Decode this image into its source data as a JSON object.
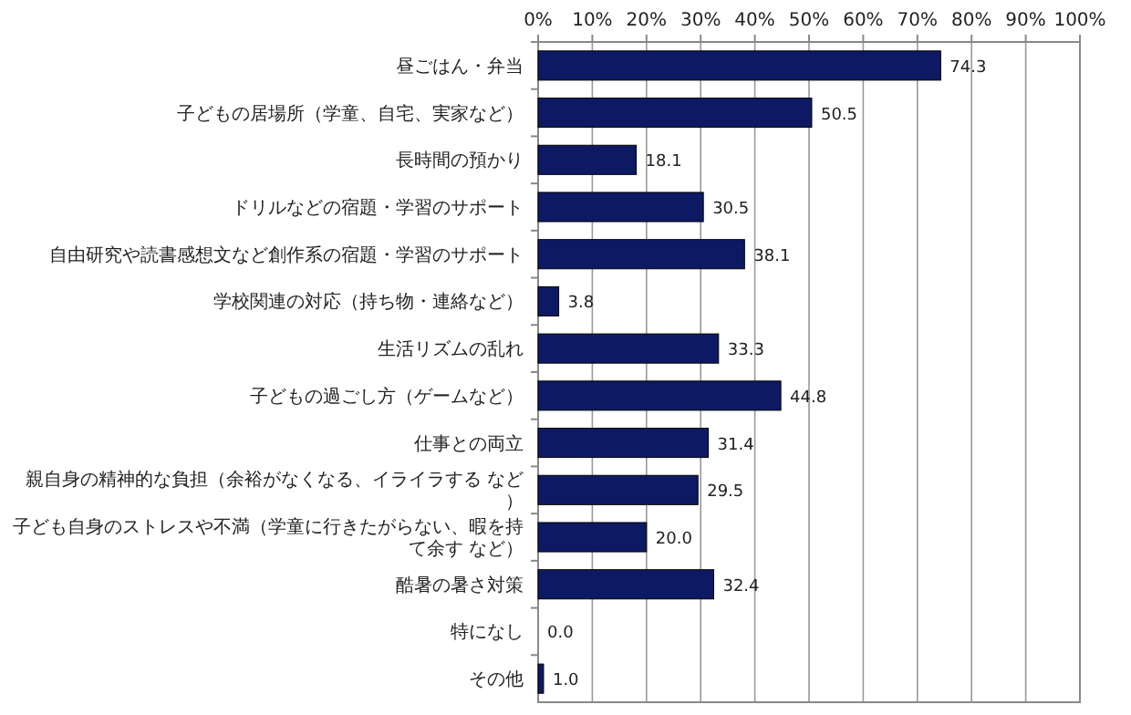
{
  "chart_data": {
    "type": "bar",
    "orientation": "horizontal",
    "categories": [
      "昼ごはん・弁当",
      "子どもの居場所（学童、自宅、実家など）",
      "長時間の預かり",
      "ドリルなどの宿題・学習のサポート",
      "自由研究や読書感想文など創作系の宿題・学習のサポート",
      "学校関連の対応（持ち物・連絡など）",
      "生活リズムの乱れ",
      "子どもの過ごし方（ゲームなど）",
      "仕事との両立",
      "親自身の精神的な負担（余裕がなくなる、イライラする など）",
      "子ども自身のストレスや不満（学童に行きたがらない、暇を持て余す など）",
      "酷暑の暑さ対策",
      "特になし",
      "その他"
    ],
    "values": [
      74.3,
      50.5,
      18.1,
      30.5,
      38.1,
      3.8,
      33.3,
      44.8,
      31.4,
      29.5,
      20.0,
      32.4,
      0.0,
      1.0
    ],
    "value_labels": [
      "74.3",
      "50.5",
      "18.1",
      "30.5",
      "38.1",
      "3.8",
      "33.3",
      "44.8",
      "31.4",
      "29.5",
      "20.0",
      "32.4",
      "0.0",
      "1.0"
    ],
    "color": "#0d1a63",
    "xlim": [
      0,
      100
    ],
    "xticks": [
      {
        "value": 0,
        "label": "0%"
      },
      {
        "value": 10,
        "label": "10%"
      },
      {
        "value": 20,
        "label": "20%"
      },
      {
        "value": 30,
        "label": "30%"
      },
      {
        "value": 40,
        "label": "40%"
      },
      {
        "value": 50,
        "label": "50%"
      },
      {
        "value": 60,
        "label": "60%"
      },
      {
        "value": 70,
        "label": "70%"
      },
      {
        "value": 80,
        "label": "80%"
      },
      {
        "value": 90,
        "label": "90%"
      },
      {
        "value": 100,
        "label": "100%"
      }
    ],
    "grid": "x"
  }
}
